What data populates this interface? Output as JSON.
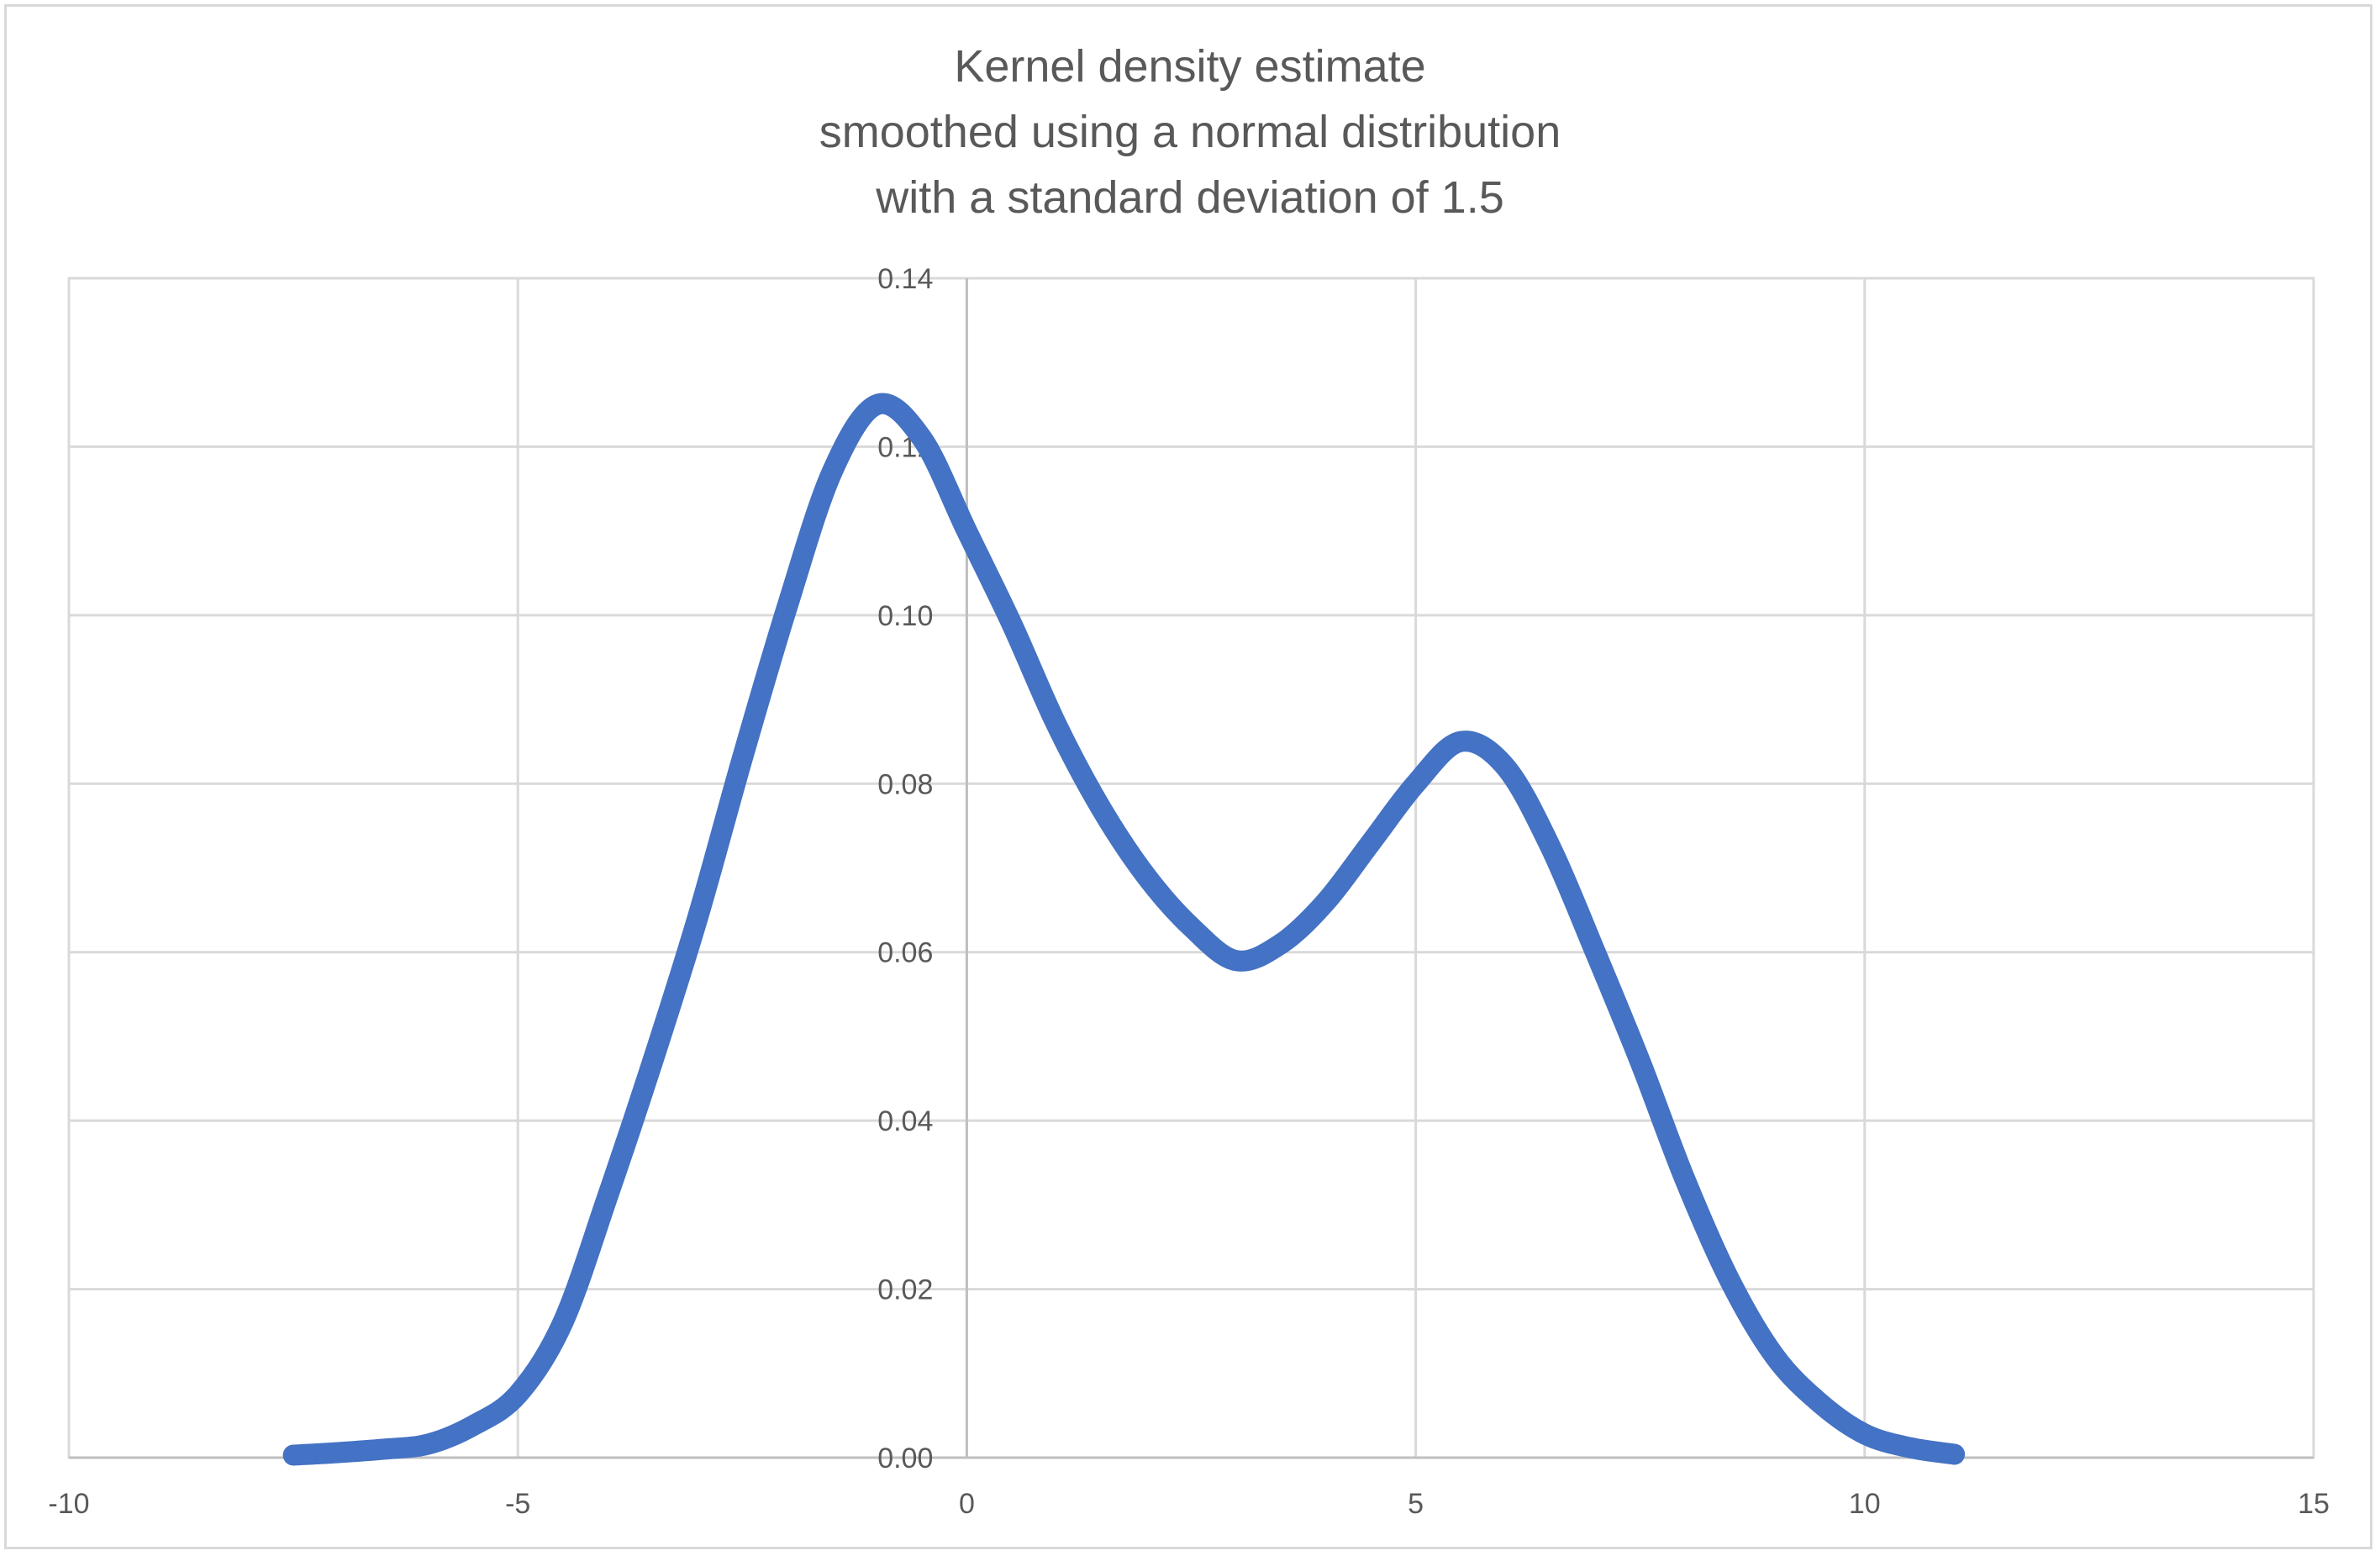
{
  "chart": {
    "title_lines": [
      "Kernel density estimate",
      "smoothed using a normal distribution",
      "with a standard deviation of 1.5"
    ],
    "line_color": "#4472C4",
    "gridline_color": "#d9d9d9",
    "label_color": "#595959"
  },
  "chart_data": {
    "type": "line",
    "title": "Kernel density estimate smoothed using a normal distribution with a standard deviation of 1.5",
    "xlabel": "",
    "ylabel": "",
    "xlim": [
      -10,
      15
    ],
    "ylim": [
      0,
      0.14
    ],
    "x_ticks": [
      -10,
      -5,
      0,
      5,
      10,
      15
    ],
    "x_tick_labels": [
      "-10",
      "-5",
      "0",
      "5",
      "10",
      "15"
    ],
    "y_ticks": [
      0,
      0.02,
      0.04,
      0.06,
      0.08,
      0.1,
      0.12,
      0.14
    ],
    "y_tick_labels": [
      "0.00",
      "0.02",
      "0.04",
      "0.06",
      "0.08",
      "0.10",
      "0.12",
      "0.14"
    ],
    "grid": true,
    "legend": null,
    "series": [
      {
        "name": "Kernel density estimate",
        "x": [
          -7.5,
          -7,
          -6.5,
          -6,
          -5.5,
          -5,
          -4.5,
          -4,
          -3.5,
          -3,
          -2.5,
          -2,
          -1.5,
          -1,
          -0.5,
          0,
          0.5,
          1,
          1.5,
          2,
          2.5,
          3,
          3.5,
          4,
          4.5,
          5,
          5.5,
          6,
          6.5,
          7,
          7.5,
          8,
          8.5,
          9,
          9.5,
          10,
          10.5,
          11
        ],
        "values": [
          0.0003,
          0.0006,
          0.001,
          0.0016,
          0.0038,
          0.0075,
          0.016,
          0.031,
          0.047,
          0.064,
          0.083,
          0.101,
          0.117,
          0.125,
          0.121,
          0.11,
          0.099,
          0.087,
          0.077,
          0.069,
          0.063,
          0.059,
          0.061,
          0.066,
          0.073,
          0.08,
          0.085,
          0.082,
          0.0725,
          0.06,
          0.047,
          0.033,
          0.021,
          0.012,
          0.0065,
          0.0028,
          0.0012,
          0.0004
        ]
      }
    ]
  }
}
